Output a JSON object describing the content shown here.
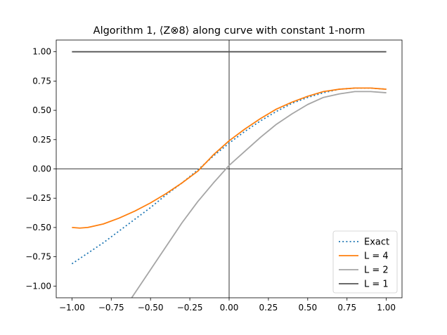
{
  "chart_data": {
    "type": "line",
    "title": "Algorithm 1, ⟨Z⊗8⟩ along curve with constant 1-norm",
    "xlabel": "",
    "ylabel": "",
    "xlim": [
      -1.1,
      1.1
    ],
    "ylim": [
      -1.1,
      1.1
    ],
    "grid": false,
    "legend_position": "lower-right",
    "reference_lines": {
      "horizontal": 0,
      "vertical": 0
    },
    "x_ticks": [
      "−1.00",
      "−0.75",
      "−0.50",
      "−0.25",
      "0.00",
      "0.25",
      "0.50",
      "0.75",
      "1.00"
    ],
    "y_ticks": [
      "−1.00",
      "−0.75",
      "−0.50",
      "−0.25",
      "0.00",
      "0.25",
      "0.50",
      "0.75",
      "1.00"
    ],
    "series": [
      {
        "name": "Exact",
        "color": "#1f77b4",
        "style": "dotted",
        "x": [
          -1.0,
          -0.9,
          -0.8,
          -0.7,
          -0.6,
          -0.5,
          -0.4,
          -0.3,
          -0.2,
          -0.1,
          0.0,
          0.1,
          0.2,
          0.3,
          0.4,
          0.5,
          0.6,
          0.7,
          0.8,
          0.9,
          1.0
        ],
        "y": [
          -0.81,
          -0.72,
          -0.63,
          -0.53,
          -0.43,
          -0.33,
          -0.22,
          -0.12,
          -0.01,
          0.11,
          0.22,
          0.32,
          0.41,
          0.49,
          0.56,
          0.61,
          0.65,
          0.68,
          0.69,
          0.69,
          0.68
        ]
      },
      {
        "name": "L = 4",
        "color": "#ff7f0e",
        "style": "solid",
        "x": [
          -1.0,
          -0.95,
          -0.9,
          -0.8,
          -0.7,
          -0.6,
          -0.5,
          -0.4,
          -0.3,
          -0.2,
          -0.1,
          0.0,
          0.1,
          0.2,
          0.3,
          0.4,
          0.5,
          0.6,
          0.7,
          0.8,
          0.9,
          1.0
        ],
        "y": [
          -0.5,
          -0.505,
          -0.5,
          -0.47,
          -0.42,
          -0.36,
          -0.29,
          -0.21,
          -0.12,
          -0.02,
          0.12,
          0.24,
          0.34,
          0.43,
          0.51,
          0.57,
          0.62,
          0.66,
          0.68,
          0.69,
          0.69,
          0.68
        ]
      },
      {
        "name": "L = 2",
        "color": "#a5a5a5",
        "style": "solid",
        "x": [
          -0.62,
          -0.6,
          -0.5,
          -0.4,
          -0.3,
          -0.2,
          -0.1,
          0.0,
          0.1,
          0.2,
          0.3,
          0.4,
          0.5,
          0.6,
          0.7,
          0.8,
          0.9,
          1.0
        ],
        "y": [
          -1.1,
          -1.06,
          -0.86,
          -0.66,
          -0.46,
          -0.28,
          -0.12,
          0.03,
          0.15,
          0.27,
          0.38,
          0.47,
          0.55,
          0.61,
          0.64,
          0.66,
          0.66,
          0.65
        ]
      },
      {
        "name": "L = 1",
        "color": "#555555",
        "style": "solid",
        "x": [
          -1.0,
          1.0
        ],
        "y": [
          1.0,
          1.0
        ]
      }
    ]
  }
}
